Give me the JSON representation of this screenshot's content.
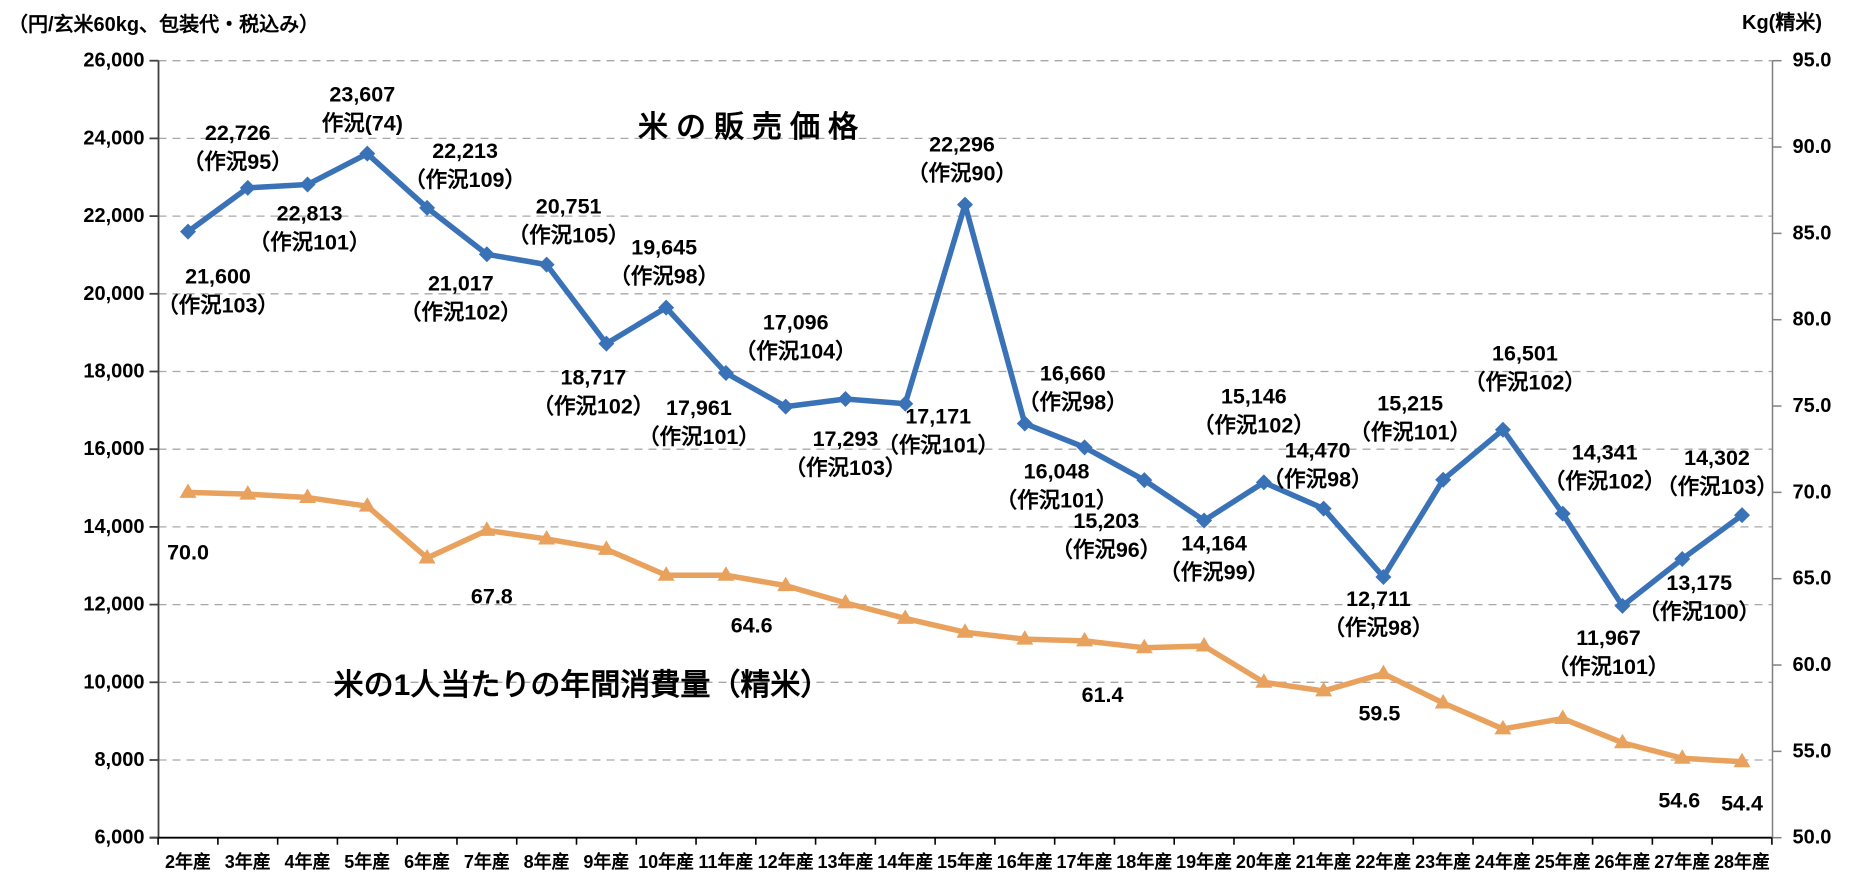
{
  "axis_titles": {
    "left": "（円/玄米60kg、包装代・税込み）",
    "right": "Kg(精米)"
  },
  "chart_data": {
    "type": "line",
    "categories": [
      "2年産",
      "3年産",
      "4年産",
      "5年産",
      "6年産",
      "7年産",
      "8年産",
      "9年産",
      "10年産",
      "11年産",
      "12年産",
      "13年産",
      "14年産",
      "15年産",
      "16年産",
      "17年産",
      "18年産",
      "19年産",
      "20年産",
      "21年産",
      "22年産",
      "23年産",
      "24年産",
      "25年産",
      "26年産",
      "27年産",
      "28年産"
    ],
    "grid": {
      "horizontal": true,
      "style": "dashed",
      "color": "#a8a8a8"
    },
    "legend_position": "none",
    "left_axis": {
      "min": 6000,
      "max": 26000,
      "step": 2000,
      "tick_labels": [
        "26,000",
        "24,000",
        "22,000",
        "20,000",
        "18,000",
        "16,000",
        "14,000",
        "12,000",
        "10,000",
        "8,000",
        "6,000"
      ]
    },
    "right_axis": {
      "min": 50.0,
      "max": 95.0,
      "step": 5.0,
      "tick_labels": [
        "95.0",
        "90.0",
        "85.0",
        "80.0",
        "75.0",
        "70.0",
        "65.0",
        "60.0",
        "55.0",
        "50.0"
      ]
    },
    "series": [
      {
        "name": "米の販売価格",
        "axis": "left",
        "color": "#3a72b8",
        "marker": "diamond",
        "values": [
          21600,
          22726,
          22813,
          23607,
          22213,
          21017,
          20751,
          18717,
          19645,
          17961,
          17096,
          17293,
          17171,
          22296,
          16660,
          16048,
          15203,
          14164,
          15146,
          14470,
          12711,
          15215,
          16501,
          14341,
          11967,
          13175,
          14302
        ],
        "point_labels": [
          {
            "value": "21,600",
            "note": "（作況103）"
          },
          {
            "value": "22,726",
            "note": "（作況95）"
          },
          {
            "value": "22,813",
            "note": "（作況101）"
          },
          {
            "value": "23,607",
            "note": "作況(74)"
          },
          {
            "value": "22,213",
            "note": "（作況109）"
          },
          {
            "value": "21,017",
            "note": "（作況102）"
          },
          {
            "value": "20,751",
            "note": "（作況105）"
          },
          {
            "value": "18,717",
            "note": "（作況102）"
          },
          {
            "value": "19,645",
            "note": "（作況98）"
          },
          {
            "value": "17,961",
            "note": "（作況101）"
          },
          {
            "value": "17,096",
            "note": "（作況104）"
          },
          {
            "value": "17,293",
            "note": "（作況103）"
          },
          {
            "value": "17,171",
            "note": "（作況101）"
          },
          {
            "value": "22,296",
            "note": "（作況90）"
          },
          {
            "value": "16,660",
            "note": "（作況98）"
          },
          {
            "value": "16,048",
            "note": "（作況101）"
          },
          {
            "value": "15,203",
            "note": "（作況96）"
          },
          {
            "value": "14,164",
            "note": "（作況99）"
          },
          {
            "value": "15,146",
            "note": "（作況102）"
          },
          {
            "value": "14,470",
            "note": "（作況98）"
          },
          {
            "value": "12,711",
            "note": "（作況98）"
          },
          {
            "value": "15,215",
            "note": "（作況101）"
          },
          {
            "value": "16,501",
            "note": "（作況102）"
          },
          {
            "value": "14,341",
            "note": "（作況102）"
          },
          {
            "value": "11,967",
            "note": "（作況101）"
          },
          {
            "value": "13,175",
            "note": "（作況100）"
          },
          {
            "value": "14,302",
            "note": "（作況103）"
          }
        ]
      },
      {
        "name": "米の1人当たりの年間消費量（精米）",
        "axis": "right",
        "color": "#e9a25e",
        "marker": "triangle-up",
        "values": [
          70.0,
          69.9,
          69.7,
          69.2,
          66.2,
          67.8,
          67.3,
          66.7,
          65.2,
          65.2,
          64.6,
          63.6,
          62.7,
          61.9,
          61.5,
          61.4,
          61.0,
          61.1,
          59.0,
          58.5,
          59.5,
          57.8,
          56.3,
          56.9,
          55.5,
          54.6,
          54.4
        ],
        "point_labels": [
          {
            "index": 0,
            "text": "70.0"
          },
          {
            "index": 5,
            "text": "67.8"
          },
          {
            "index": 10,
            "text": "64.6"
          },
          {
            "index": 15,
            "text": "61.4"
          },
          {
            "index": 20,
            "text": "59.5"
          },
          {
            "index": 25,
            "text": "54.6"
          },
          {
            "index": 26,
            "text": "54.4"
          }
        ]
      }
    ]
  }
}
